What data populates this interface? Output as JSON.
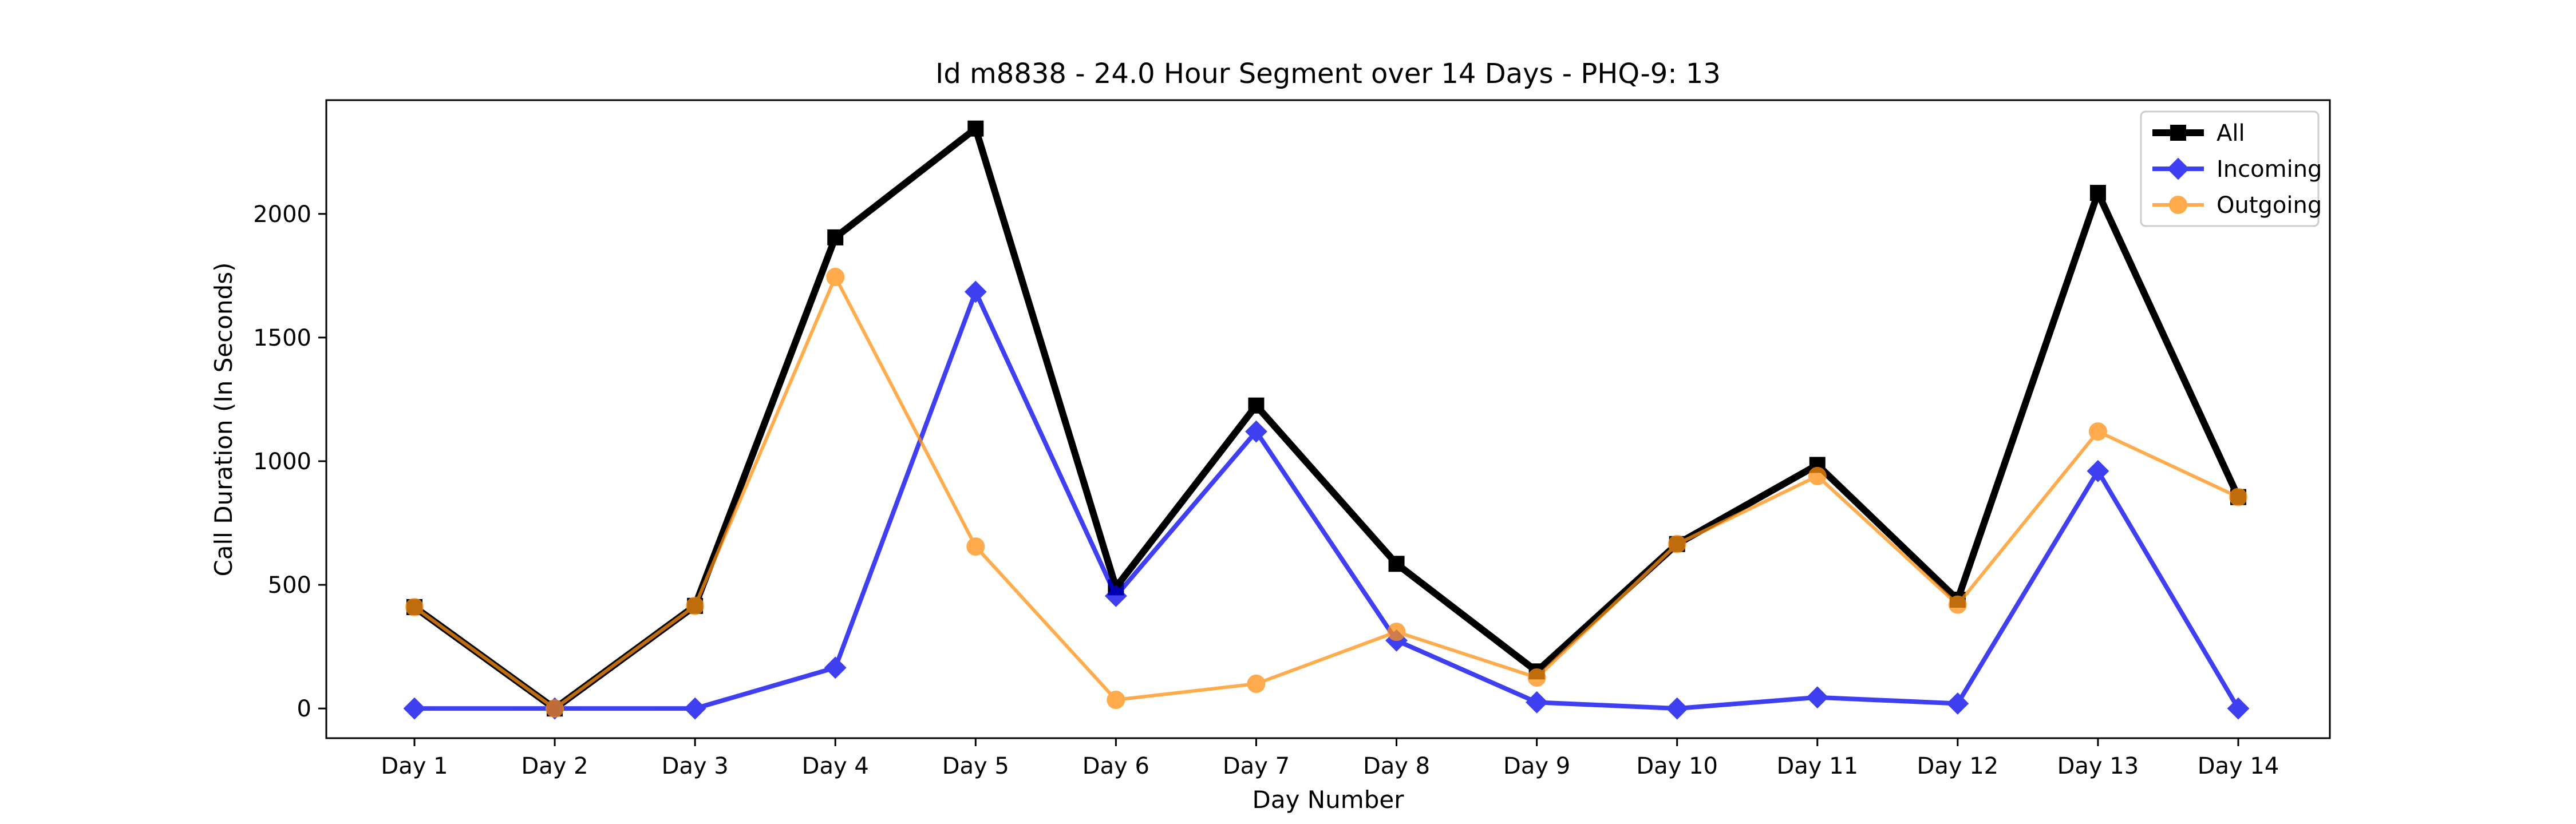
{
  "chart_data": {
    "type": "line",
    "title": "Id m8838 - 24.0 Hour Segment over 14 Days - PHQ-9: 13",
    "xlabel": "Day Number",
    "ylabel": "Call Duration (In Seconds)",
    "categories": [
      "Day 1",
      "Day 2",
      "Day 3",
      "Day 4",
      "Day 5",
      "Day 6",
      "Day 7",
      "Day 8",
      "Day 9",
      "Day 10",
      "Day 11",
      "Day 12",
      "Day 13",
      "Day 14"
    ],
    "ylim": [
      -120,
      2460
    ],
    "yticks": [
      0,
      500,
      1000,
      1500,
      2000
    ],
    "grid": false,
    "legend_position": "top-right",
    "series": [
      {
        "name": "All",
        "color": "#000000",
        "marker": "square",
        "values": [
          410,
          0,
          415,
          1905,
          2345,
          490,
          1225,
          585,
          150,
          665,
          985,
          440,
          2085,
          855
        ]
      },
      {
        "name": "Incoming",
        "color": "#0000ee",
        "marker": "diamond",
        "values": [
          0,
          0,
          0,
          165,
          1685,
          455,
          1120,
          275,
          25,
          0,
          45,
          20,
          960,
          0
        ]
      },
      {
        "name": "Outgoing",
        "color": "#ff9012",
        "marker": "circle",
        "values": [
          410,
          0,
          415,
          1745,
          655,
          35,
          100,
          310,
          125,
          665,
          940,
          420,
          1120,
          855
        ]
      }
    ]
  }
}
